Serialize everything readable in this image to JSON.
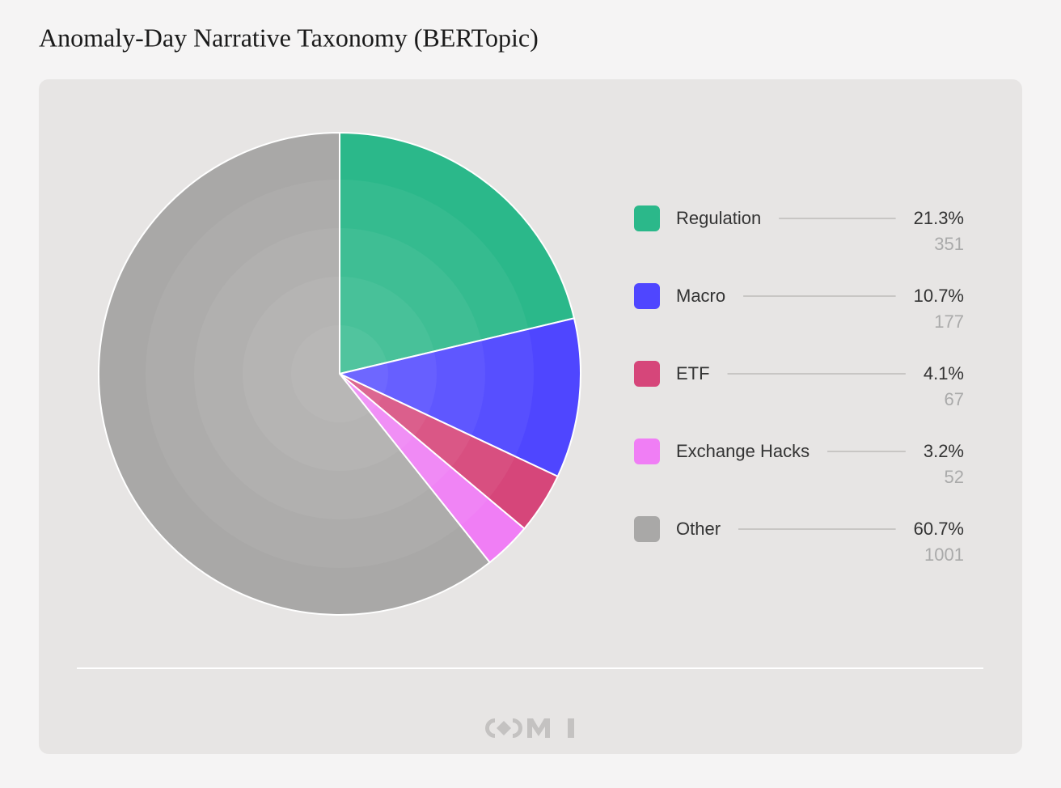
{
  "chart_data": {
    "type": "pie",
    "title": "Anomaly-Day Narrative Taxonomy (BERTopic)",
    "categories": [
      "Regulation",
      "Macro",
      "ETF",
      "Exchange Hacks",
      "Other"
    ],
    "values": [
      21.3,
      10.7,
      4.1,
      3.2,
      60.7
    ],
    "value_labels": [
      "21.3%",
      "10.7%",
      "4.1%",
      "3.2%",
      "60.7%"
    ],
    "counts": [
      351,
      177,
      67,
      52,
      1001
    ],
    "colors": [
      "#2bb88a",
      "#4f46ff",
      "#d6467a",
      "#f07ef5",
      "#a9a8a7"
    ]
  }
}
